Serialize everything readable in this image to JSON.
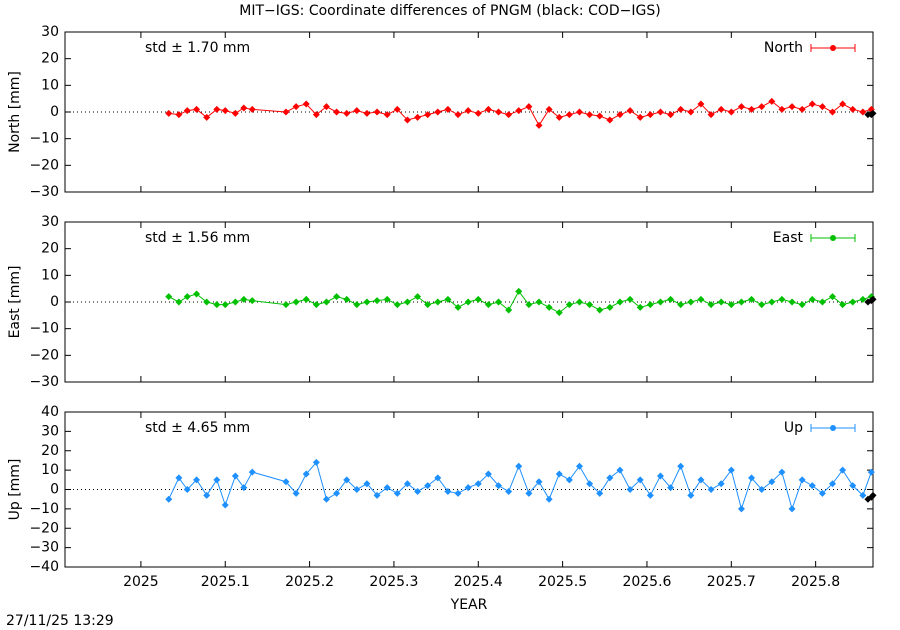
{
  "title": "MIT−IGS: Coordinate differences of PNGM (black: COD−IGS)",
  "timestamp": "27/11/25 13:29",
  "chart_data": [
    {
      "type": "line",
      "ylabel": "North [mm]",
      "annotation": "std ± 1.70 mm",
      "x": [
        2025.033,
        2025.045,
        2025.055,
        2025.066,
        2025.078,
        2025.09,
        2025.1,
        2025.112,
        2025.122,
        2025.132,
        2025.172,
        2025.184,
        2025.196,
        2025.208,
        2025.22,
        2025.232,
        2025.244,
        2025.256,
        2025.268,
        2025.28,
        2025.292,
        2025.304,
        2025.316,
        2025.328,
        2025.34,
        2025.352,
        2025.364,
        2025.376,
        2025.388,
        2025.4,
        2025.412,
        2025.424,
        2025.436,
        2025.448,
        2025.46,
        2025.472,
        2025.484,
        2025.496,
        2025.508,
        2025.52,
        2025.532,
        2025.544,
        2025.556,
        2025.568,
        2025.58,
        2025.592,
        2025.604,
        2025.616,
        2025.628,
        2025.64,
        2025.652,
        2025.664,
        2025.676,
        2025.688,
        2025.7,
        2025.712,
        2025.724,
        2025.736,
        2025.748,
        2025.76,
        2025.772,
        2025.784,
        2025.796,
        2025.808,
        2025.82,
        2025.832,
        2025.844,
        2025.856,
        2025.866
      ],
      "series": [
        {
          "name": "North",
          "color": "#ff0000",
          "values": [
            -0.5,
            -1,
            0.5,
            1,
            -2,
            1,
            0.5,
            -0.5,
            1.5,
            1,
            0,
            2,
            3,
            -1,
            2,
            0,
            -0.5,
            0.5,
            -0.5,
            0,
            -1,
            1,
            -3,
            -2,
            -1,
            0,
            1,
            -1,
            0.5,
            -0.5,
            1,
            0,
            -1,
            0.5,
            2,
            -5,
            1,
            -2,
            -1,
            0,
            -1,
            -1.5,
            -3,
            -1,
            0.5,
            -2,
            -1,
            0,
            -1,
            1,
            0,
            3,
            -1,
            1,
            0,
            2,
            1,
            2,
            4,
            1,
            2,
            1,
            3,
            2,
            0,
            3,
            1,
            0,
            1
          ]
        },
        {
          "color": "#000000",
          "x": [
            2025.862,
            2025.866,
            2025.868
          ],
          "values": [
            -1,
            -1,
            -0.5
          ]
        }
      ],
      "xlim": [
        2024.91,
        2025.868
      ],
      "xticks": [
        2025,
        2025.1,
        2025.2,
        2025.3,
        2025.4,
        2025.5,
        2025.6,
        2025.7,
        2025.8
      ],
      "ylim": [
        -30,
        30
      ],
      "yticks": [
        {
          "value": -30,
          "label": "−30"
        },
        {
          "value": -20,
          "label": "−20"
        },
        {
          "value": -10,
          "label": "−10"
        },
        0,
        10,
        20,
        30
      ]
    },
    {
      "type": "line",
      "ylabel": "East [mm]",
      "annotation": "std ± 1.56 mm",
      "x": [
        2025.033,
        2025.045,
        2025.055,
        2025.066,
        2025.078,
        2025.09,
        2025.1,
        2025.112,
        2025.122,
        2025.132,
        2025.172,
        2025.184,
        2025.196,
        2025.208,
        2025.22,
        2025.232,
        2025.244,
        2025.256,
        2025.268,
        2025.28,
        2025.292,
        2025.304,
        2025.316,
        2025.328,
        2025.34,
        2025.352,
        2025.364,
        2025.376,
        2025.388,
        2025.4,
        2025.412,
        2025.424,
        2025.436,
        2025.448,
        2025.46,
        2025.472,
        2025.484,
        2025.496,
        2025.508,
        2025.52,
        2025.532,
        2025.544,
        2025.556,
        2025.568,
        2025.58,
        2025.592,
        2025.604,
        2025.616,
        2025.628,
        2025.64,
        2025.652,
        2025.664,
        2025.676,
        2025.688,
        2025.7,
        2025.712,
        2025.724,
        2025.736,
        2025.748,
        2025.76,
        2025.772,
        2025.784,
        2025.796,
        2025.808,
        2025.82,
        2025.832,
        2025.844,
        2025.856,
        2025.866
      ],
      "series": [
        {
          "name": "East",
          "color": "#00c000",
          "values": [
            2,
            0,
            2,
            3,
            0,
            -1,
            -1,
            0,
            1,
            0.5,
            -1,
            0,
            1,
            -1,
            0,
            2,
            1,
            -1,
            0,
            0.5,
            1,
            -1,
            0,
            2,
            -1,
            0,
            1,
            -2,
            0,
            1,
            -1,
            0,
            -3,
            4,
            -1,
            0,
            -2,
            -4,
            -1,
            0,
            -1,
            -3,
            -2,
            0,
            1,
            -2,
            -1,
            0,
            1,
            -1,
            0,
            1,
            -1,
            0,
            -1,
            0,
            1,
            -1,
            0,
            1,
            0,
            -1,
            1,
            0,
            2,
            -1,
            0,
            1,
            2
          ]
        },
        {
          "color": "#000000",
          "x": [
            2025.862,
            2025.866,
            2025.868
          ],
          "values": [
            0,
            0.5,
            1
          ]
        }
      ],
      "xlim": [
        2024.91,
        2025.868
      ],
      "xticks": [
        2025,
        2025.1,
        2025.2,
        2025.3,
        2025.4,
        2025.5,
        2025.6,
        2025.7,
        2025.8
      ],
      "ylim": [
        -30,
        30
      ],
      "yticks": [
        {
          "value": -30,
          "label": "−30"
        },
        {
          "value": -20,
          "label": "−20"
        },
        {
          "value": -10,
          "label": "−10"
        },
        0,
        10,
        20,
        30
      ]
    },
    {
      "type": "line",
      "ylabel": "Up [mm]",
      "annotation": "std ± 4.65 mm",
      "xlabel": "YEAR",
      "x": [
        2025.033,
        2025.045,
        2025.055,
        2025.066,
        2025.078,
        2025.09,
        2025.1,
        2025.112,
        2025.122,
        2025.132,
        2025.172,
        2025.184,
        2025.196,
        2025.208,
        2025.22,
        2025.232,
        2025.244,
        2025.256,
        2025.268,
        2025.28,
        2025.292,
        2025.304,
        2025.316,
        2025.328,
        2025.34,
        2025.352,
        2025.364,
        2025.376,
        2025.388,
        2025.4,
        2025.412,
        2025.424,
        2025.436,
        2025.448,
        2025.46,
        2025.472,
        2025.484,
        2025.496,
        2025.508,
        2025.52,
        2025.532,
        2025.544,
        2025.556,
        2025.568,
        2025.58,
        2025.592,
        2025.604,
        2025.616,
        2025.628,
        2025.64,
        2025.652,
        2025.664,
        2025.676,
        2025.688,
        2025.7,
        2025.712,
        2025.724,
        2025.736,
        2025.748,
        2025.76,
        2025.772,
        2025.784,
        2025.796,
        2025.808,
        2025.82,
        2025.832,
        2025.844,
        2025.856,
        2025.866
      ],
      "series": [
        {
          "name": "Up",
          "color": "#1e90ff",
          "values": [
            -5,
            6,
            0,
            5,
            -3,
            5,
            -8,
            7,
            1,
            9,
            4,
            -2,
            8,
            14,
            -5,
            -2,
            5,
            0,
            3,
            -3,
            1,
            -2,
            3,
            -1,
            2,
            6,
            -1,
            -2,
            1,
            3,
            8,
            2,
            -1,
            12,
            -2,
            4,
            -5,
            8,
            5,
            12,
            3,
            -2,
            6,
            10,
            0,
            5,
            -3,
            7,
            1,
            12,
            -3,
            5,
            0,
            3,
            10,
            -10,
            6,
            0,
            4,
            9,
            -10,
            5,
            2,
            -2,
            3,
            10,
            2,
            -3,
            9
          ]
        },
        {
          "color": "#000000",
          "x": [
            2025.862,
            2025.866,
            2025.868
          ],
          "values": [
            -5,
            -4,
            -3
          ]
        }
      ],
      "xlim": [
        2024.91,
        2025.868
      ],
      "xticks": [
        2025,
        2025.1,
        2025.2,
        2025.3,
        2025.4,
        2025.5,
        2025.6,
        2025.7,
        2025.8
      ],
      "ylim": [
        -40,
        40
      ],
      "yticks": [
        {
          "value": -40,
          "label": "−40"
        },
        {
          "value": -30,
          "label": "−30"
        },
        {
          "value": -20,
          "label": "−20"
        },
        {
          "value": -10,
          "label": "−10"
        },
        0,
        10,
        20,
        30,
        40
      ]
    }
  ]
}
